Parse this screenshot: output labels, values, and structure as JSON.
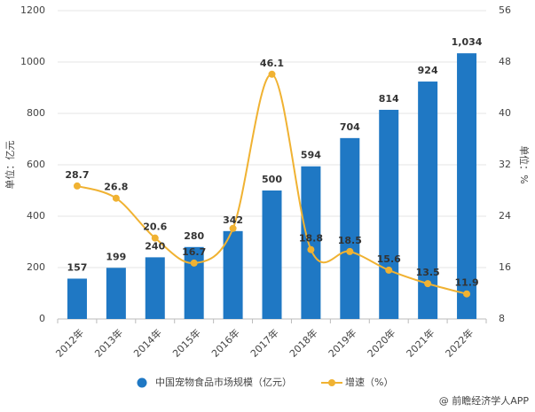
{
  "chart_data": {
    "type": "bar-line",
    "categories": [
      "2012年",
      "2013年",
      "2014年",
      "2015年",
      "2016年",
      "2017年",
      "2018年",
      "2019年",
      "2020年",
      "2021年",
      "2022年"
    ],
    "series": [
      {
        "name": "中国宠物食品市场规模（亿元）",
        "color": "#1f78c4",
        "type": "bar",
        "values": [
          157,
          199,
          240,
          280,
          342,
          500,
          594,
          704,
          814,
          924,
          1034
        ],
        "value_labels": [
          "157",
          "199",
          "240",
          "280",
          "342",
          "500",
          "594",
          "704",
          "814",
          "924",
          "1,034"
        ]
      },
      {
        "name": "增速（%）",
        "color": "#f0b232",
        "type": "line",
        "axis": "y2",
        "values": [
          28.7,
          26.8,
          20.6,
          16.7,
          22.1,
          46.1,
          18.8,
          18.5,
          15.6,
          13.5,
          11.9
        ],
        "value_labels": [
          "28.7",
          "26.8",
          "20.6",
          "16.7",
          null,
          "46.1",
          "18.8",
          "18.5",
          "15.6",
          "13.5",
          "11.9"
        ]
      }
    ],
    "ylabel": "单位：亿元",
    "y2label": "单位：%",
    "ylim": [
      0,
      1200
    ],
    "yticks": [
      0,
      200,
      400,
      600,
      800,
      1000,
      1200
    ],
    "y2lim": [
      8,
      56
    ],
    "y2ticks": [
      8,
      16,
      24,
      32,
      40,
      48,
      56
    ],
    "source": "@ 前瞻经济学人APP"
  }
}
